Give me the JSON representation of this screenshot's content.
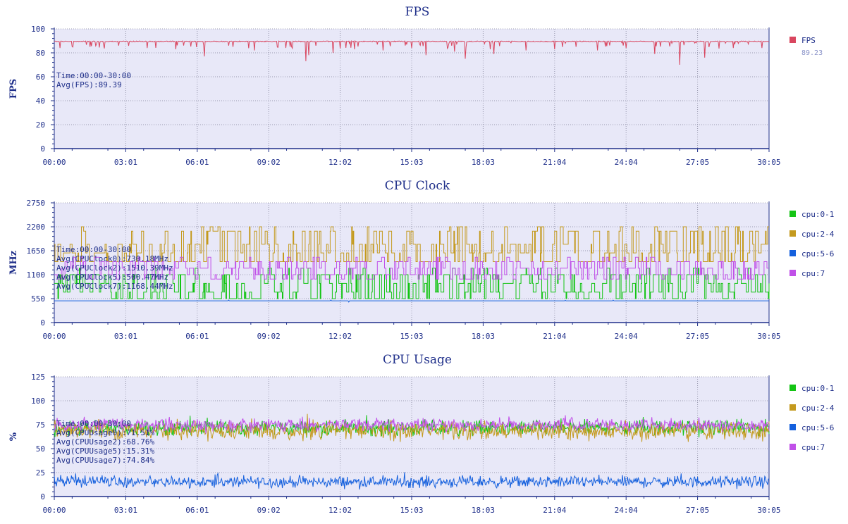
{
  "chart_data": [
    {
      "type": "line",
      "title": "FPS",
      "ylabel": "FPS",
      "ylim": [
        0,
        100
      ],
      "yticks": [
        0,
        20,
        40,
        60,
        80,
        100
      ],
      "yticklabels": [
        "0",
        "20",
        "40",
        "60",
        "80",
        "100"
      ],
      "xticks": [
        "00:00",
        "03:01",
        "06:01",
        "09:02",
        "12:02",
        "15:03",
        "18:03",
        "21:04",
        "24:04",
        "27:05",
        "30:05"
      ],
      "grid": true,
      "legend": "right",
      "annotations": [
        "Time:00:00-30:00",
        "Avg(FPS):89.39"
      ],
      "series": [
        {
          "name": "FPS",
          "color": "#d9465f",
          "legend_value": "89.23",
          "base": 89.5,
          "noise": 0.8,
          "dips": [
            [
              0.008,
              84
            ],
            [
              0.05,
              85
            ],
            [
              0.09,
              86
            ],
            [
              0.13,
              84
            ],
            [
              0.17,
              83
            ],
            [
              0.21,
              77
            ],
            [
              0.25,
              85
            ],
            [
              0.28,
              82
            ],
            [
              0.33,
              85
            ],
            [
              0.352,
              73
            ],
            [
              0.356,
              78
            ],
            [
              0.39,
              80
            ],
            [
              0.42,
              83
            ],
            [
              0.46,
              82
            ],
            [
              0.5,
              84
            ],
            [
              0.52,
              78
            ],
            [
              0.56,
              81
            ],
            [
              0.575,
              75
            ],
            [
              0.61,
              83
            ],
            [
              0.615,
              79
            ],
            [
              0.66,
              82
            ],
            [
              0.7,
              83
            ],
            [
              0.73,
              85
            ],
            [
              0.76,
              82
            ],
            [
              0.8,
              84
            ],
            [
              0.84,
              83
            ],
            [
              0.84,
              79
            ],
            [
              0.875,
              70
            ],
            [
              0.91,
              76
            ],
            [
              0.95,
              84
            ],
            [
              0.99,
              84
            ]
          ],
          "dipcount": 60,
          "dipdepth": 5
        }
      ]
    },
    {
      "type": "line",
      "title": "CPU Clock",
      "ylabel": "MHz",
      "ylim": [
        0,
        2750
      ],
      "yticks": [
        0,
        550,
        1100,
        1650,
        2200,
        2750
      ],
      "yticklabels": [
        "0",
        "550",
        "1100",
        "1650",
        "2200",
        "2750"
      ],
      "xticks": [
        "00:00",
        "03:01",
        "06:01",
        "09:02",
        "12:02",
        "15:03",
        "18:03",
        "21:04",
        "24:04",
        "27:05",
        "30:05"
      ],
      "grid": true,
      "legend": "right",
      "annotations": [
        "Time:00:00-30:00",
        "Avg(CPUClock0):730.18MHz",
        "Avg(CPUClock2):1510.39MHz",
        "Avg(CPUClock5):500.47MHz",
        "Avg(CPUClock7):1168.44MHz"
      ],
      "series": [
        {
          "name": "cpu:0-1",
          "color": "#14c414",
          "mode": "step",
          "levels": [
            550,
            700,
            900,
            1100
          ],
          "spikes": 1250
        },
        {
          "name": "cpu:2-4",
          "color": "#c49a1e",
          "mode": "step",
          "levels": [
            1400,
            1400,
            1600,
            1800,
            2100
          ],
          "spikes": 2200
        },
        {
          "name": "cpu:5-6",
          "color": "#1560dd",
          "mode": "flat",
          "level": 500
        },
        {
          "name": "cpu:7",
          "color": "#c050e8",
          "mode": "step",
          "levels": [
            1000,
            1100,
            1250,
            1400
          ],
          "spikes": 1500
        }
      ]
    },
    {
      "type": "line",
      "title": "CPU Usage",
      "ylabel": "%",
      "ylim": [
        0,
        125
      ],
      "yticks": [
        0,
        25,
        50,
        75,
        100,
        125
      ],
      "yticklabels": [
        "0",
        "25",
        "50",
        "75",
        "100",
        "125"
      ],
      "xticks": [
        "00:00",
        "03:01",
        "06:01",
        "09:02",
        "12:02",
        "15:03",
        "18:03",
        "21:04",
        "24:04",
        "27:05",
        "30:05"
      ],
      "grid": true,
      "legend": "right",
      "annotations": [
        "Time:00:00-30:00",
        "Avg(CPUUsage0):71.51%",
        "Avg(CPUUsage2):68.76%",
        "Avg(CPUUsage5):15.31%",
        "Avg(CPUUsage7):74.84%"
      ],
      "series": [
        {
          "name": "cpu:0-1",
          "color": "#14c414",
          "mode": "noise",
          "mean": 71.5,
          "amp": 6
        },
        {
          "name": "cpu:2-4",
          "color": "#c49a1e",
          "mode": "noise",
          "mean": 68.8,
          "amp": 7
        },
        {
          "name": "cpu:5-6",
          "color": "#1560dd",
          "mode": "noise",
          "mean": 15.3,
          "amp": 4.5
        },
        {
          "name": "cpu:7",
          "color": "#c050e8",
          "mode": "noise",
          "mean": 74.8,
          "amp": 5
        }
      ]
    }
  ]
}
